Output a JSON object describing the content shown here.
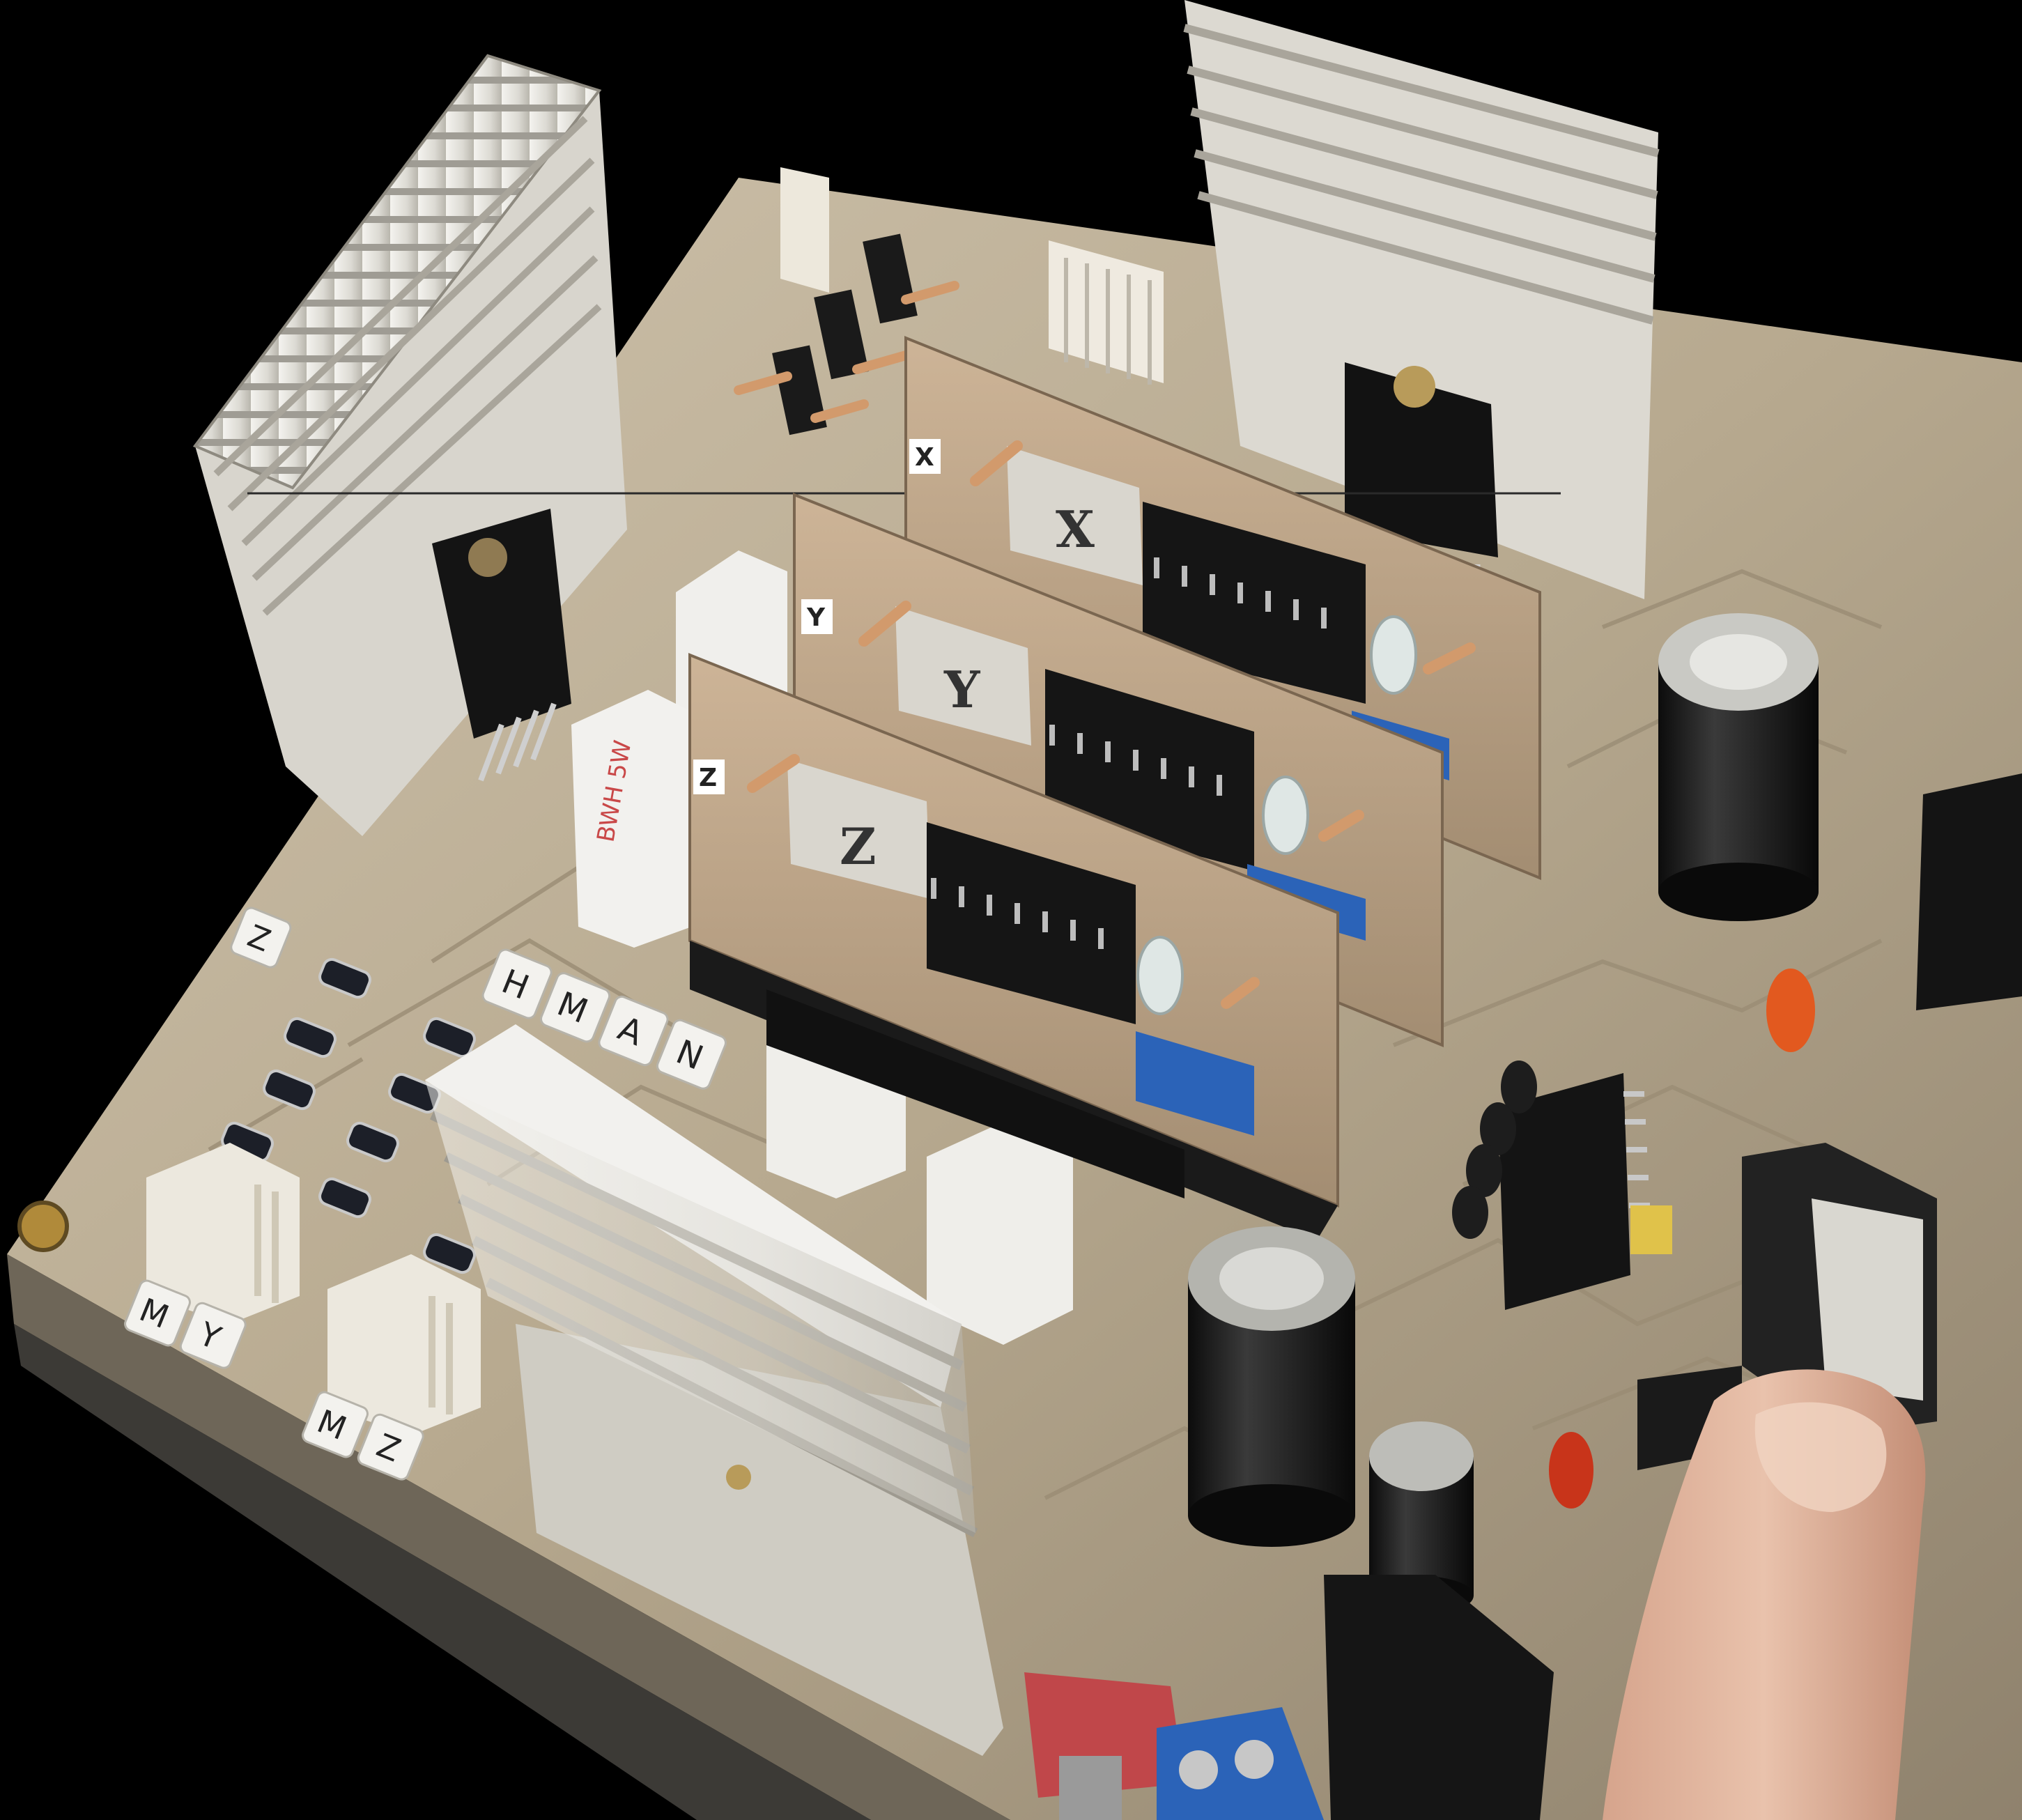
{
  "photo": {
    "subject": "stepper-motor-driver-board",
    "background_color": "#000000",
    "board_color": "#b9ab93",
    "heatsink_color": "#e4e2dc",
    "ic_color": "#141414",
    "trimmer_color": "#2b63b8"
  },
  "module_labels": {
    "x": "X",
    "y": "Y",
    "z": "Z"
  },
  "hand_labels": {
    "x": "X",
    "y": "Y",
    "z": "Z"
  },
  "letter_blocks": {
    "mode": [
      "H",
      "M",
      "A",
      "N"
    ],
    "motor_y": [
      "M",
      "Y"
    ],
    "motor_z": [
      "M",
      "Z"
    ],
    "corner": "Z"
  }
}
